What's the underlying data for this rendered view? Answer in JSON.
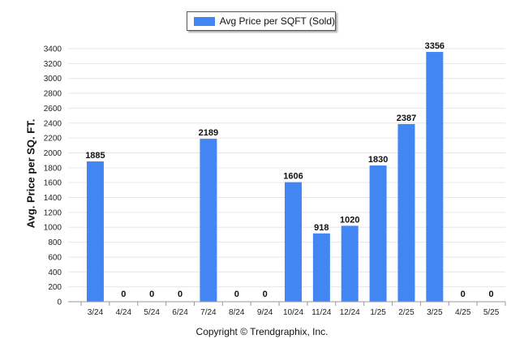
{
  "chart_data": {
    "type": "bar",
    "legend": {
      "label": "Avg Price per SQFT (Sold)",
      "placement": "top-center"
    },
    "series": [
      {
        "name": "Avg Price per SQFT (Sold)",
        "color": "#4286f4",
        "values": [
          1885,
          0,
          0,
          0,
          2189,
          0,
          0,
          1606,
          918,
          1020,
          1830,
          2387,
          3356,
          0,
          0
        ]
      }
    ],
    "categories": [
      "3/24",
      "4/24",
      "5/24",
      "6/24",
      "7/24",
      "8/24",
      "9/24",
      "10/24",
      "11/24",
      "12/24",
      "1/25",
      "2/25",
      "3/25",
      "4/25",
      "5/25"
    ],
    "ylabel": "Avg. Price per SQ. FT.",
    "xlabel": "",
    "ylim": [
      0,
      3400
    ],
    "yticks": [
      0,
      200,
      400,
      600,
      800,
      1000,
      1200,
      1400,
      1600,
      1800,
      2000,
      2200,
      2400,
      2600,
      2800,
      3000,
      3200,
      3400
    ],
    "grid": true,
    "data_labels": true
  },
  "footer": {
    "copyright": "Copyright © Trendgraphix, Inc."
  }
}
